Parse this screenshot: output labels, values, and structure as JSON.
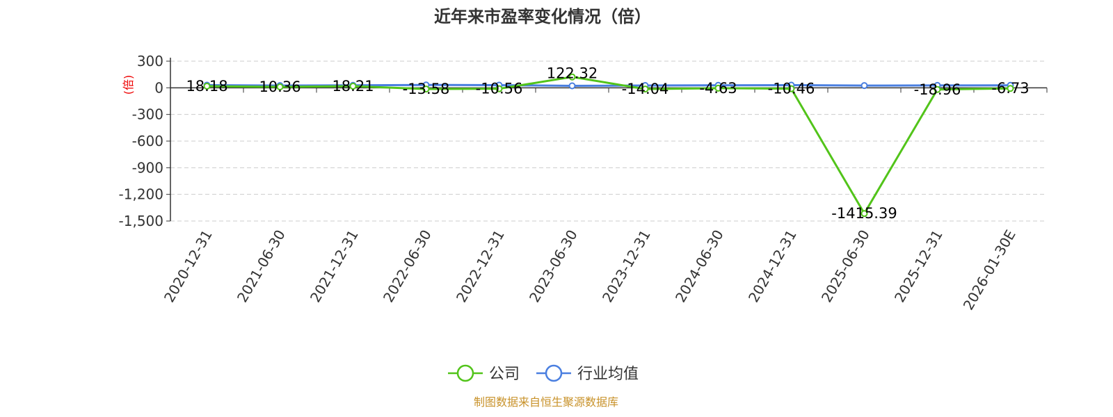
{
  "chart_data": {
    "type": "line",
    "title": "近年来市盈率变化情况（倍）",
    "ylabel": "(倍)",
    "ylim": [
      -1500,
      300
    ],
    "yticks": [
      300,
      0,
      -300,
      -600,
      -900,
      -1200,
      -1500
    ],
    "ytick_labels": [
      "300",
      "0",
      "-300",
      "-600",
      "-900",
      "-1,200",
      "-1,500"
    ],
    "grid": true,
    "legend_position": "bottom",
    "categories": [
      "2020-12-31",
      "2021-06-30",
      "2021-12-31",
      "2022-06-30",
      "2022-12-31",
      "2023-06-30",
      "2023-12-31",
      "2024-06-30",
      "2024-12-31",
      "2025-06-30",
      "2025-12-31",
      "2026-01-30E"
    ],
    "series": [
      {
        "name": "公司",
        "color": "#52c41a",
        "values": [
          18.18,
          10.36,
          18.21,
          -13.58,
          -10.56,
          122.32,
          -14.04,
          -4.63,
          -10.46,
          -1415.39,
          -18.96,
          -6.73
        ],
        "labels": [
          "18.18",
          "10.36",
          "18.21",
          "-13.58",
          "-10.56",
          "122.32",
          "-14.04",
          "-4.63",
          "-10.46",
          "-1415.39",
          "-18.96",
          "-6.73"
        ]
      },
      {
        "name": "行业均值",
        "color": "#4a7fe0",
        "values": [
          30,
          25,
          28,
          32,
          30,
          22,
          26,
          28,
          30,
          25,
          27,
          28
        ]
      }
    ]
  },
  "source": "制图数据来自恒生聚源数据库"
}
